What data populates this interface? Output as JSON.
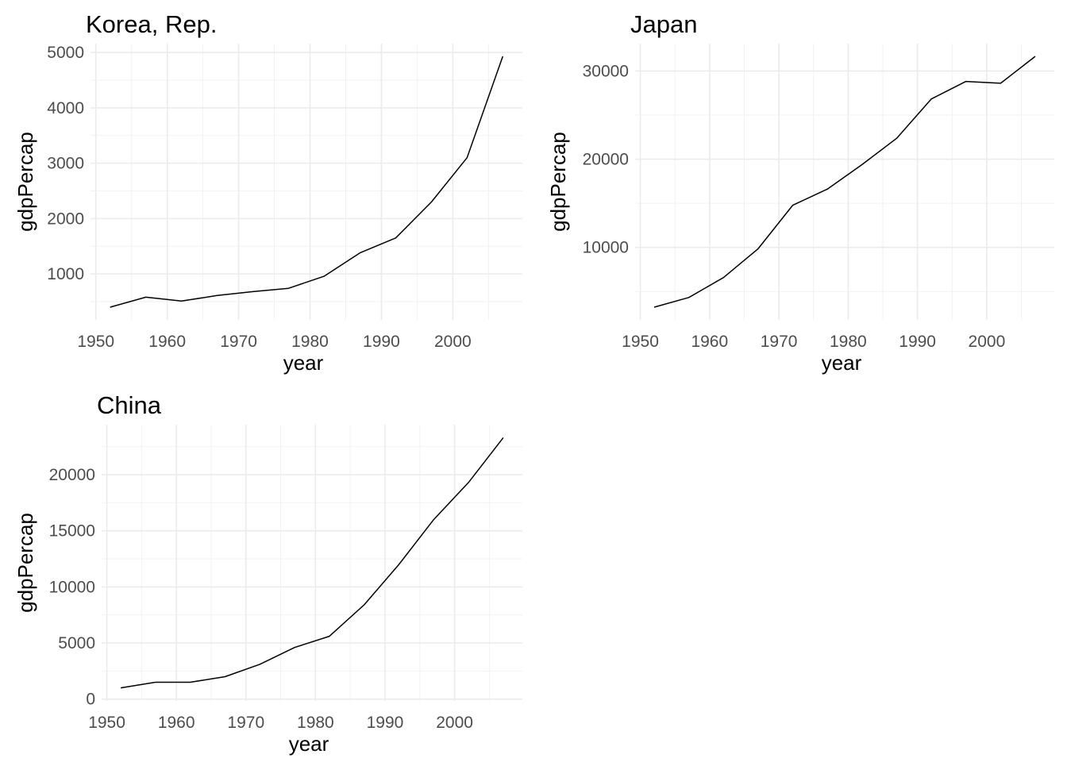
{
  "chart_data": [
    {
      "type": "line",
      "title": "Korea, Rep.",
      "xlabel": "year",
      "ylabel": "gdpPercap",
      "x": [
        1952,
        1957,
        1962,
        1967,
        1972,
        1977,
        1982,
        1987,
        1992,
        1997,
        2002,
        2007
      ],
      "series": [
        {
          "values": [
            400,
            580,
            510,
            610,
            680,
            740,
            960,
            1380,
            1650,
            2300,
            3100,
            4930
          ]
        }
      ],
      "xticks": [
        1950,
        1960,
        1970,
        1980,
        1990,
        2000
      ],
      "xtick_labels": [
        "1950",
        "1960",
        "1970",
        "1980",
        "1990",
        "2000"
      ],
      "yticks": [
        1000,
        2000,
        3000,
        4000,
        5000
      ],
      "ytick_labels": [
        "1000",
        "2000",
        "3000",
        "4000",
        "5000"
      ],
      "xlim": [
        1949.25,
        2009.75
      ],
      "ylim": [
        170,
        5160
      ],
      "grid": true,
      "line_color": "#000000"
    },
    {
      "type": "line",
      "title": "Japan",
      "xlabel": "year",
      "ylabel": "gdpPercap",
      "x": [
        1952,
        1957,
        1962,
        1967,
        1972,
        1977,
        1982,
        1987,
        1992,
        1997,
        2002,
        2007
      ],
      "series": [
        {
          "values": [
            3216,
            4318,
            6577,
            9848,
            14779,
            16610,
            19384,
            22376,
            26825,
            28817,
            28605,
            31656
          ]
        }
      ],
      "xticks": [
        1950,
        1960,
        1970,
        1980,
        1990,
        2000
      ],
      "xtick_labels": [
        "1950",
        "1960",
        "1970",
        "1980",
        "1990",
        "2000"
      ],
      "yticks": [
        10000,
        20000,
        30000
      ],
      "ytick_labels": [
        "10000",
        "20000",
        "30000"
      ],
      "xlim": [
        1949.25,
        2009.75
      ],
      "ylim": [
        1780,
        33100
      ],
      "grid": true,
      "line_color": "#000000"
    },
    {
      "type": "line",
      "title": "China",
      "xlabel": "year",
      "ylabel": "gdpPercap",
      "x": [
        1952,
        1957,
        1962,
        1967,
        1972,
        1977,
        1982,
        1987,
        1992,
        1997,
        2002,
        2007
      ],
      "series": [
        {
          "values": [
            1000,
            1500,
            1500,
            2000,
            3100,
            4600,
            5600,
            8400,
            12000,
            16000,
            19300,
            23300
          ]
        }
      ],
      "xticks": [
        1950,
        1960,
        1970,
        1980,
        1990,
        2000
      ],
      "xtick_labels": [
        "1950",
        "1960",
        "1970",
        "1980",
        "1990",
        "2000"
      ],
      "yticks": [
        0,
        5000,
        10000,
        15000,
        20000
      ],
      "ytick_labels": [
        "0",
        "5000",
        "10000",
        "15000",
        "20000"
      ],
      "xlim": [
        1949.25,
        2009.75
      ],
      "ylim": [
        -160,
        24460
      ],
      "grid": true,
      "line_color": "#000000"
    }
  ]
}
